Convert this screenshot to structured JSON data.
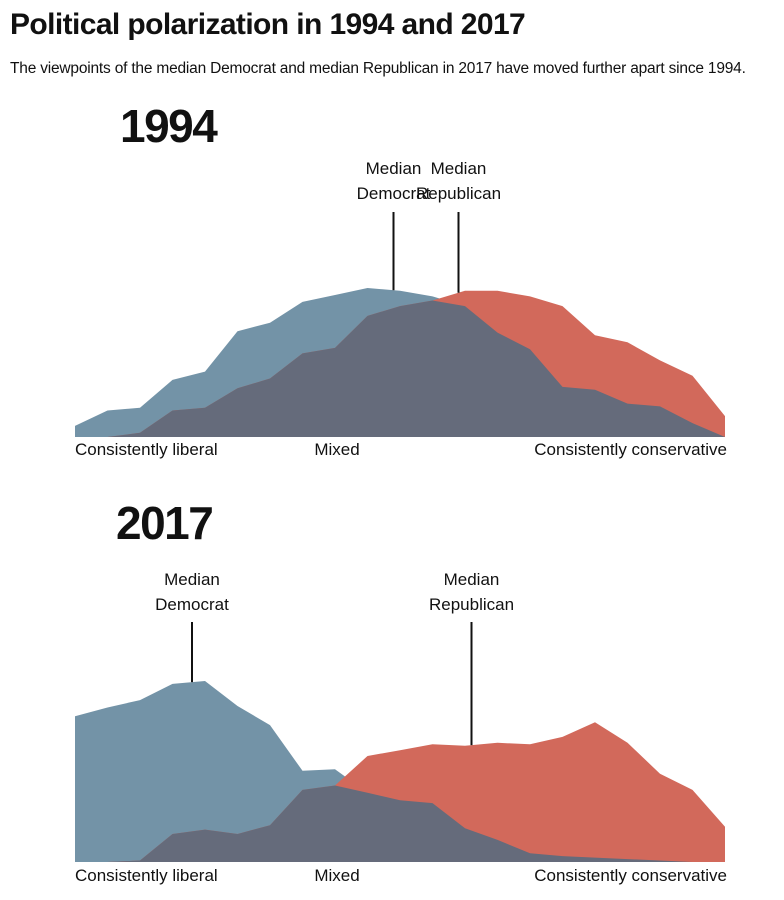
{
  "title": "Political polarization in 1994 and 2017",
  "subtitle": "The viewpoints of the median Democrat and median Republican in 2017 have moved further apart since 1994.",
  "colors": {
    "democrat": "#7393a7",
    "republican": "#d2695b",
    "overlap": "#656b7b",
    "median_line": "#111111"
  },
  "chart_data": [
    {
      "type": "area",
      "title": "1994",
      "xlabels": [
        "Consistently liberal",
        "Mixed",
        "Consistently conservative"
      ],
      "x": [
        0,
        1,
        2,
        3,
        4,
        5,
        6,
        7,
        8,
        9,
        10,
        11,
        12,
        13,
        14,
        15,
        16,
        17,
        18,
        19,
        20
      ],
      "series": [
        {
          "party": "democrat",
          "values": [
            0.08,
            0.19,
            0.21,
            0.41,
            0.47,
            0.76,
            0.82,
            0.97,
            1.02,
            1.07,
            1.05,
            1.01,
            0.94,
            0.75,
            0.63,
            0.36,
            0.34,
            0.24,
            0.22,
            0.1,
            0.0
          ]
        },
        {
          "party": "republican",
          "values": [
            0.0,
            0.0,
            0.03,
            0.19,
            0.21,
            0.35,
            0.42,
            0.6,
            0.64,
            0.87,
            0.94,
            0.98,
            1.05,
            1.05,
            1.01,
            0.94,
            0.73,
            0.68,
            0.55,
            0.44,
            0.15
          ]
        }
      ],
      "medians": [
        {
          "label_lines": [
            "Median",
            "Democrat"
          ],
          "x": 9.8
        },
        {
          "label_lines": [
            "Median",
            "Republican"
          ],
          "x": 11.8
        }
      ]
    },
    {
      "type": "area",
      "title": "2017",
      "xlabels": [
        "Consistently liberal",
        "Mixed",
        "Consistently conservative"
      ],
      "x": [
        0,
        1,
        2,
        3,
        4,
        5,
        6,
        7,
        8,
        9,
        10,
        11,
        12,
        13,
        14,
        15,
        16,
        17,
        18,
        19,
        20
      ],
      "series": [
        {
          "party": "democrat",
          "values": [
            0.99,
            1.05,
            1.1,
            1.21,
            1.23,
            1.06,
            0.93,
            0.62,
            0.63,
            0.47,
            0.42,
            0.4,
            0.23,
            0.15,
            0.06,
            0.04,
            0.03,
            0.02,
            0.01,
            0.0,
            0.0
          ]
        },
        {
          "party": "republican",
          "values": [
            0.0,
            0.0,
            0.01,
            0.19,
            0.22,
            0.19,
            0.25,
            0.49,
            0.52,
            0.72,
            0.76,
            0.8,
            0.79,
            0.81,
            0.8,
            0.85,
            0.95,
            0.81,
            0.6,
            0.49,
            0.24
          ]
        }
      ],
      "medians": [
        {
          "label_lines": [
            "Median",
            "Democrat"
          ],
          "x": 3.6
        },
        {
          "label_lines": [
            "Median",
            "Republican"
          ],
          "x": 12.2
        }
      ]
    }
  ]
}
